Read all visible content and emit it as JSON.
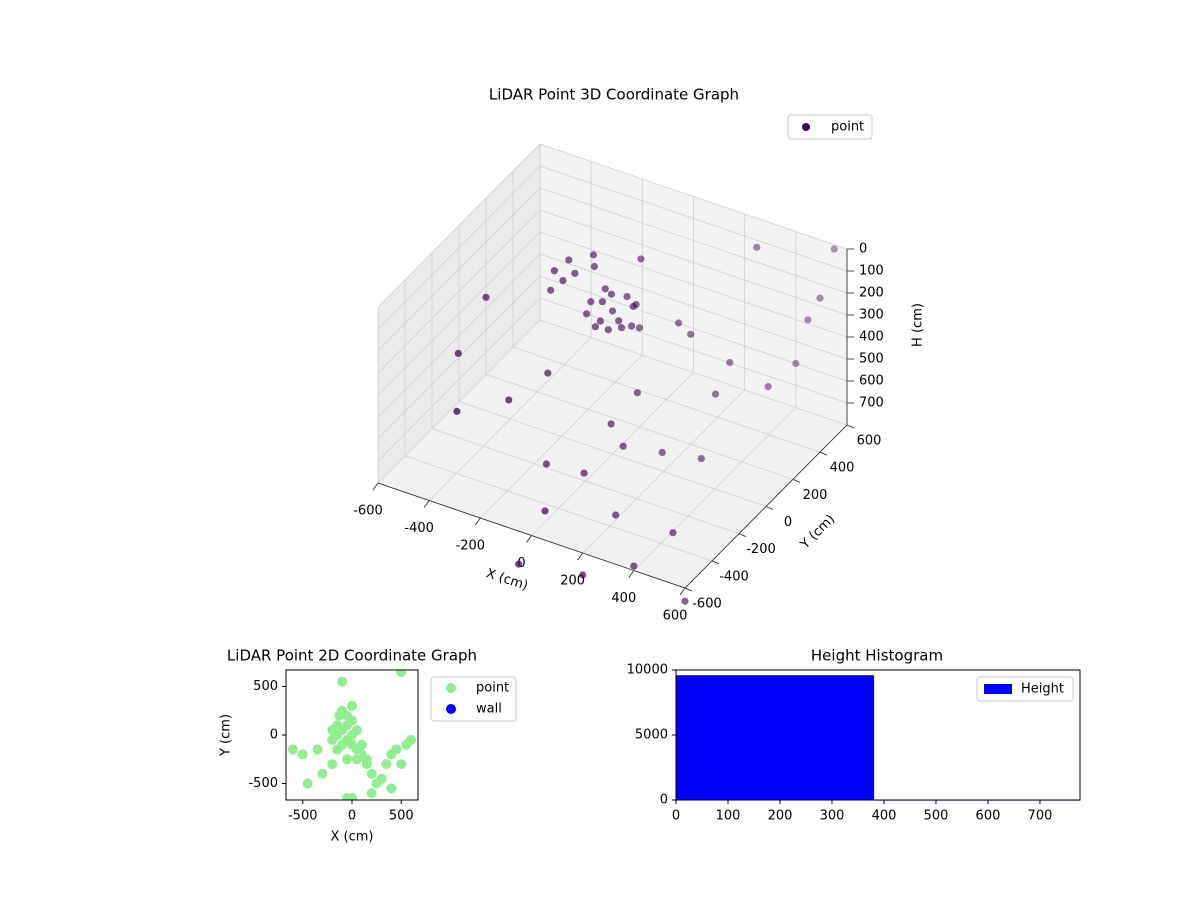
{
  "chart_data": [
    {
      "type": "scatter3d",
      "title": "LiDAR Point 3D Coordinate Graph",
      "xlabel": "X (cm)",
      "ylabel": "Y (cm)",
      "zlabel": "H (cm)",
      "xlim": [
        -600,
        600
      ],
      "ylim": [
        -600,
        600
      ],
      "zlim": [
        800,
        0
      ],
      "xticks": [
        -600,
        -400,
        -200,
        0,
        200,
        400,
        600
      ],
      "yticks": [
        -600,
        -400,
        -200,
        0,
        200,
        400,
        600
      ],
      "zticks": [
        0,
        100,
        200,
        300,
        400,
        500,
        600,
        700
      ],
      "grid": true,
      "legend": "upper right",
      "series": [
        {
          "name": "point",
          "color": "#440154",
          "x": [
            0,
            -50,
            40,
            -80,
            60,
            20,
            -30,
            80,
            -60,
            10,
            -20,
            50,
            -90,
            30,
            0,
            -200,
            -250,
            -150,
            -220,
            -180,
            -280,
            -600,
            -550,
            -400,
            200,
            300,
            400,
            100,
            -100,
            350,
            450,
            500,
            200,
            -300,
            600,
            550,
            300,
            -100,
            150,
            250,
            0,
            100,
            -450,
            400,
            600,
            200,
            -50,
            500,
            -200,
            100,
            300,
            0,
            400
          ],
          "y": [
            0,
            20,
            -30,
            -40,
            40,
            70,
            -70,
            -10,
            60,
            -50,
            30,
            80,
            10,
            10,
            -90,
            100,
            150,
            150,
            50,
            200,
            100,
            200,
            -100,
            300,
            -300,
            -200,
            -100,
            -400,
            -300,
            100,
            300,
            -500,
            200,
            -200,
            400,
            600,
            500,
            400,
            -100,
            -450,
            -500,
            300,
            -300,
            -600,
            -600,
            -600,
            -600,
            500,
            -100,
            -200,
            300,
            200,
            600
          ],
          "z": [
            150,
            140,
            160,
            170,
            130,
            120,
            190,
            180,
            110,
            200,
            100,
            150,
            150,
            220,
            140,
            120,
            110,
            100,
            130,
            90,
            140,
            450,
            500,
            400,
            500,
            550,
            600,
            600,
            700,
            450,
            500,
            650,
            300,
            550,
            100,
            20,
            50,
            200,
            400,
            700,
            750,
            350,
            600,
            780,
            860,
            900,
            950,
            300,
            450,
            500,
            450,
            350,
            600
          ]
        }
      ]
    },
    {
      "type": "scatter",
      "title": "LiDAR Point 2D Coordinate Graph",
      "xlabel": "X (cm)",
      "ylabel": "Y (cm)",
      "xlim": [
        -670,
        670
      ],
      "ylim": [
        -670,
        670
      ],
      "xticks": [
        -500,
        0,
        500
      ],
      "yticks": [
        -500,
        0,
        500
      ],
      "legend": "outside right",
      "series": [
        {
          "name": "point",
          "color": "#90ee90",
          "x": [
            -150,
            -100,
            -50,
            0,
            -100,
            -50,
            0,
            50,
            -150,
            -200,
            -50,
            0,
            50,
            100,
            -100,
            -50,
            100,
            0,
            -150,
            -200,
            -130,
            50,
            150,
            200,
            250,
            300,
            350,
            400,
            450,
            500,
            550,
            600,
            -600,
            -500,
            -450,
            -350,
            -300,
            -50,
            -100,
            500,
            200,
            400,
            0,
            -200,
            150
          ],
          "y": [
            0,
            50,
            100,
            150,
            -100,
            -50,
            0,
            50,
            -150,
            50,
            200,
            -100,
            -150,
            -200,
            250,
            -250,
            -100,
            300,
            100,
            -50,
            200,
            -250,
            -300,
            -400,
            -500,
            -450,
            -300,
            -200,
            -150,
            -300,
            -100,
            -50,
            -150,
            -200,
            -500,
            -150,
            -400,
            -650,
            550,
            650,
            -600,
            -550,
            -650,
            -300,
            -250
          ]
        },
        {
          "name": "wall",
          "color": "#0000ff",
          "x": [],
          "y": []
        }
      ]
    },
    {
      "type": "histogram",
      "title": "Height Histogram",
      "bins": [
        0,
        381,
        777
      ],
      "values": [
        9600,
        30
      ],
      "color": "#0000ff",
      "name": "Height",
      "xlim": [
        0,
        777
      ],
      "ylim": [
        0,
        10000
      ],
      "xticks": [
        0,
        100,
        200,
        300,
        400,
        500,
        600,
        700
      ],
      "yticks": [
        0,
        5000,
        10000
      ],
      "legend": "upper right"
    }
  ]
}
